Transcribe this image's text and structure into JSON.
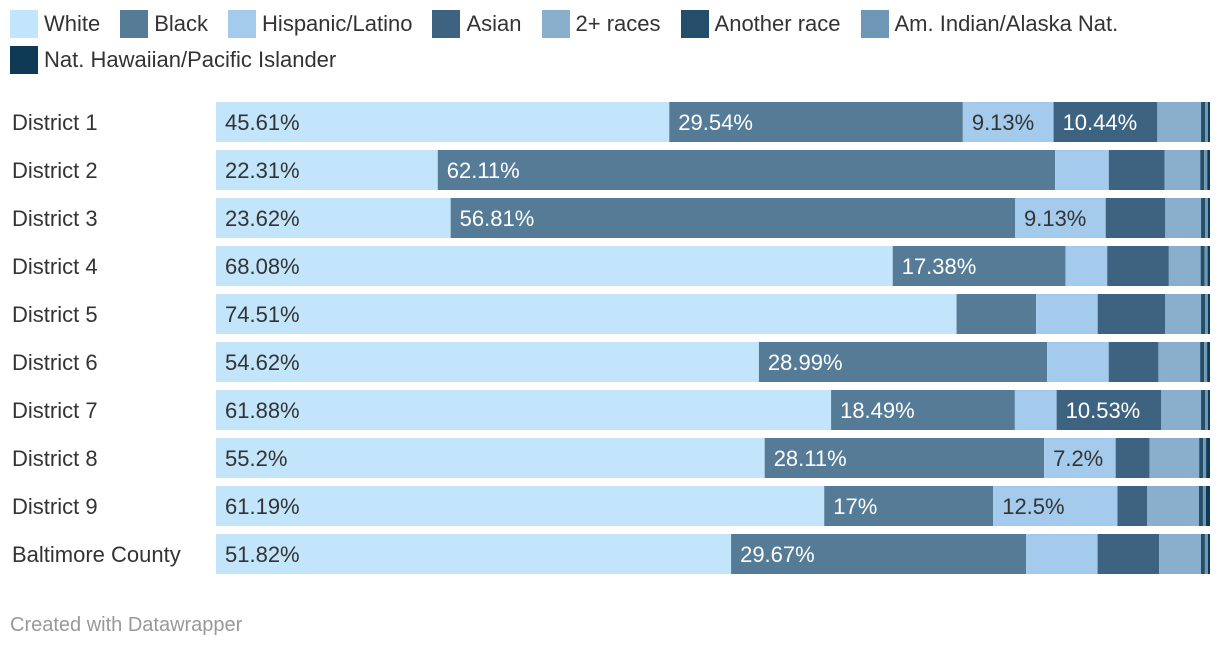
{
  "chart_data": {
    "type": "bar",
    "orientation": "horizontal",
    "stacked": true,
    "categories": [
      "District 1",
      "District 2",
      "District 3",
      "District 4",
      "District 5",
      "District 6",
      "District 7",
      "District 8",
      "District 9",
      "Baltimore County"
    ],
    "series": [
      {
        "name": "White",
        "color": "#c2e5fb",
        "label_color": "#333333",
        "values": [
          45.61,
          22.31,
          23.62,
          68.08,
          74.51,
          54.62,
          61.88,
          55.2,
          61.19,
          51.82
        ],
        "labels": [
          "45.61%",
          "22.31%",
          "23.62%",
          "68.08%",
          "74.51%",
          "54.62%",
          "61.88%",
          "55.2%",
          "61.19%",
          "51.82%"
        ]
      },
      {
        "name": "Black",
        "color": "#557b97",
        "label_color": "#ffffff",
        "values": [
          29.54,
          62.11,
          56.81,
          17.38,
          8.0,
          28.99,
          18.49,
          28.11,
          17.0,
          29.67
        ],
        "labels": [
          "29.54%",
          "62.11%",
          "56.81%",
          "17.38%",
          "",
          "28.99%",
          "18.49%",
          "28.11%",
          "17%",
          "29.67%"
        ]
      },
      {
        "name": "Hispanic/Latino",
        "color": "#a5cbec",
        "label_color": "#333333",
        "values": [
          9.13,
          5.4,
          9.13,
          4.2,
          6.2,
          6.2,
          4.2,
          7.2,
          12.5,
          7.2
        ],
        "labels": [
          "9.13%",
          "",
          "9.13%",
          "",
          "",
          "",
          "",
          "7.2%",
          "12.5%",
          ""
        ]
      },
      {
        "name": "Asian",
        "color": "#3e6381",
        "label_color": "#ffffff",
        "values": [
          10.44,
          5.6,
          6.0,
          6.2,
          6.8,
          5.0,
          10.53,
          3.4,
          3.0,
          6.2
        ],
        "labels": [
          "10.44%",
          "",
          "",
          "",
          "",
          "",
          "10.53%",
          "",
          "",
          ""
        ]
      },
      {
        "name": "2+ races",
        "color": "#89afcc",
        "label_color": "#333333",
        "values": [
          4.4,
          3.6,
          3.6,
          3.2,
          3.6,
          4.2,
          4.0,
          5.0,
          5.2,
          4.2
        ],
        "labels": [
          "",
          "",
          "",
          "",
          "",
          "",
          "",
          "",
          "",
          ""
        ]
      },
      {
        "name": "Another race",
        "color": "#244e6a",
        "label_color": "#ffffff",
        "values": [
          0.4,
          0.4,
          0.4,
          0.4,
          0.4,
          0.4,
          0.4,
          0.4,
          0.4,
          0.4
        ],
        "labels": [
          "",
          "",
          "",
          "",
          "",
          "",
          "",
          "",
          "",
          ""
        ]
      },
      {
        "name": "Am. Indian/Alaska Nat.",
        "color": "#6f97b6",
        "label_color": "#333333",
        "values": [
          0.3,
          0.3,
          0.3,
          0.3,
          0.3,
          0.3,
          0.3,
          0.3,
          0.3,
          0.3
        ],
        "labels": [
          "",
          "",
          "",
          "",
          "",
          "",
          "",
          "",
          "",
          ""
        ]
      },
      {
        "name": "Nat. Hawaiian/Pacific Islander",
        "color": "#0e3a56",
        "label_color": "#ffffff",
        "values": [
          0.2,
          0.2,
          0.2,
          0.2,
          0.2,
          0.2,
          0.2,
          0.2,
          0.2,
          0.2
        ],
        "labels": [
          "",
          "",
          "",
          "",
          "",
          "",
          "",
          "",
          "",
          ""
        ]
      }
    ],
    "xlim": [
      0,
      100
    ],
    "title": "",
    "legend_position": "top"
  },
  "footer": {
    "credit": "Created with Datawrapper"
  }
}
